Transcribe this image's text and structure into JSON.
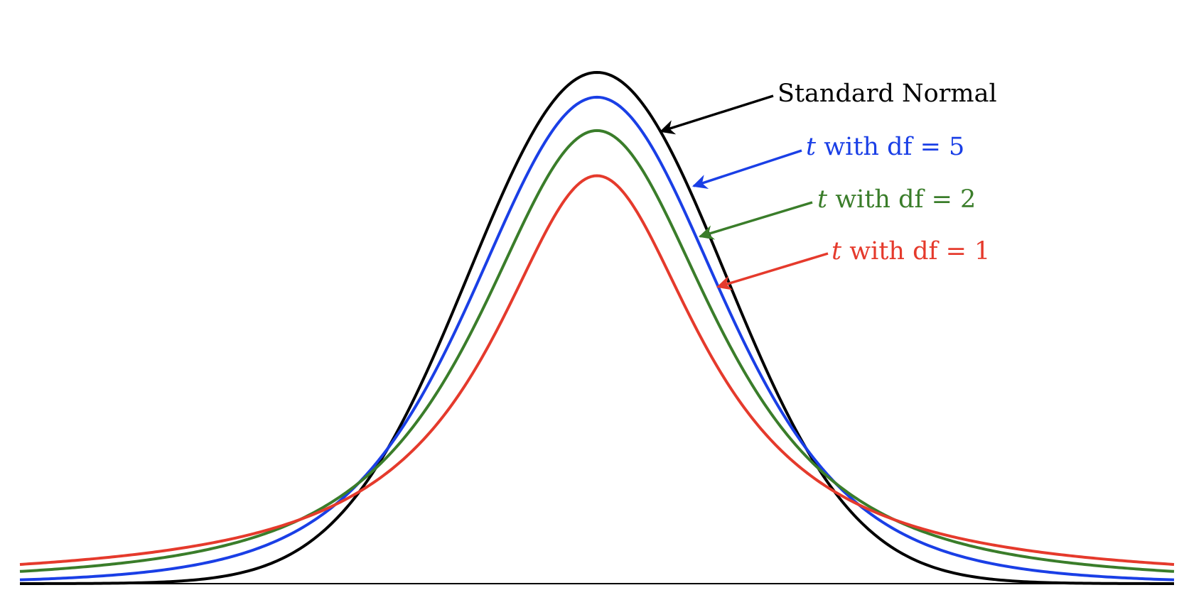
{
  "chart_data": {
    "type": "line",
    "xlim": [
      -4.5,
      4.5
    ],
    "ylim": [
      0,
      0.41
    ],
    "grid": false,
    "series": [
      {
        "name": "Standard Normal",
        "dist": "normal",
        "color": "#000000"
      },
      {
        "name": "t with df = 5",
        "dist": "t",
        "df": 5,
        "color": "#1a3fe6"
      },
      {
        "name": "t with df = 2",
        "dist": "t",
        "df": 2,
        "color": "#3a7d2a"
      },
      {
        "name": "t with df = 1",
        "dist": "t",
        "df": 1,
        "color": "#e53a2c"
      }
    ]
  },
  "labels": {
    "normal": "Standard Normal",
    "t_symbol": "t",
    "with_df": " with df = ",
    "df5": "5",
    "df2": "2",
    "df1": "1"
  }
}
